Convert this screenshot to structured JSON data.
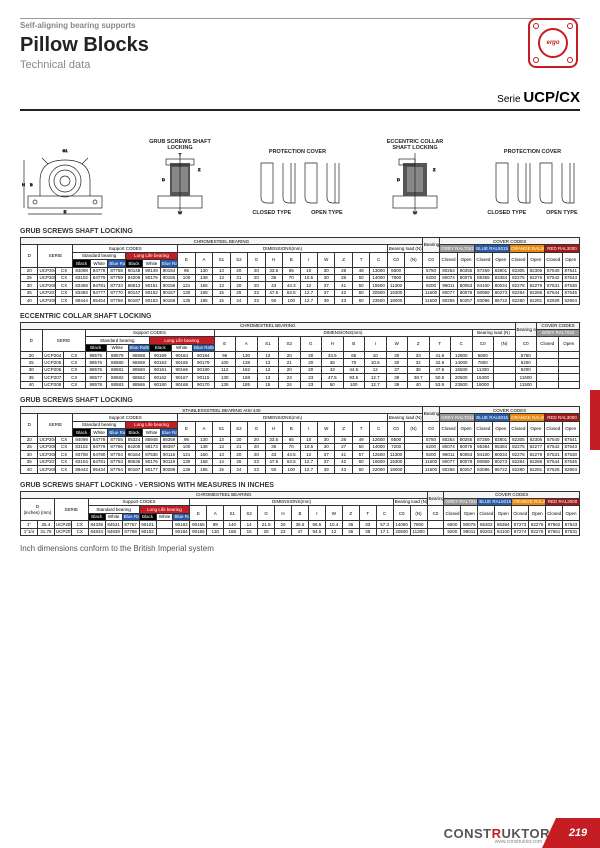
{
  "header": "Self-aligning bearing supports",
  "title": "Pillow Blocks",
  "subtitle": "Technical data",
  "serie_prefix": "Serie",
  "serie": "UCP/CX",
  "diagram_labels": {
    "grub": "GRUB SCREWS SHAFT LOCKING",
    "protection": "PROTECTION COVER",
    "eccentric": "ECCENTRIC COLLAR SHAFT LOCKING",
    "closed": "CLOSED TYPE",
    "open": "OPEN TYPE"
  },
  "sections": [
    {
      "title": "GRUB SCREWS SHAFT LOCKING",
      "super": "CHROMESTEEL BEARING",
      "covers": 4
    },
    {
      "title": "ECCENTRIC COLLAR SHAFT LOCKING",
      "super": "CHROMESTEEL BEARING",
      "covers": 1
    },
    {
      "title": "GRUB SCREWS SHAFT LOCKING",
      "super": "STAINLESSSTEEL BEARING AISI 440",
      "covers": 4
    },
    {
      "title": "GRUB SCREWS SHAFT LOCKING - VERSIONS WITH MEASURES IN INCHES",
      "super": "CHROMESTEEL BEARING",
      "covers": 4
    }
  ],
  "col_headers": {
    "d": "D",
    "serie": "SERIE",
    "support": "Support CODES",
    "std": "Standard bearing",
    "long": "Long Life bearing",
    "black": "Black",
    "white": "White",
    "blue": "Blue Ral5015",
    "dims": "DIMENSIONS(mm)",
    "load": "Bearing load (N)",
    "support_load": "Bearing support load",
    "cover": "COVER CODES",
    "grey": "GREY RAL7042",
    "blu": "BLUE RAL5015",
    "orange": "ORANGE RAL2004",
    "red": "RED RAL3000",
    "closed": "Closed",
    "open": "Open",
    "dim_cols": [
      "E",
      "A",
      "S1",
      "S2",
      "G",
      "H",
      "B",
      "I",
      "W",
      "Z",
      "T",
      "C"
    ],
    "inches": "(inches)",
    "mm": "(mm)"
  },
  "rows1": [
    [
      "20",
      "UCP204",
      "CX",
      "84098",
      "84778",
      "87758",
      "90148",
      "90149",
      "90154",
      "96",
      "130",
      "13",
      "20",
      "20",
      "33.5",
      "65",
      "10",
      "30",
      "26",
      "49",
      "13000",
      "6600",
      "",
      "5750",
      "80254",
      "80255",
      "87259",
      "83801",
      "82305",
      "82306",
      "87540",
      "87541"
    ],
    [
      "25",
      "UCP205",
      "CX",
      "83102",
      "84779",
      "87759",
      "84209",
      "90178",
      "90155",
      "100",
      "138",
      "13",
      "21",
      "20",
      "36",
      "70",
      "10.5",
      "30",
      "26",
      "50",
      "14000",
      "7800",
      "",
      "6200",
      "80074",
      "80075",
      "85355",
      "83384",
      "82275",
      "82276",
      "87542",
      "87543"
    ],
    [
      "30",
      "UCP206",
      "CX",
      "83459",
      "84781",
      "87733",
      "88613",
      "90151",
      "90156",
      "121",
      "165",
      "13",
      "20",
      "20",
      "43",
      "44.3",
      "12",
      "37",
      "41",
      "50",
      "15500",
      "11300",
      "",
      "9200",
      "99011",
      "80053",
      "84100",
      "80034",
      "82278",
      "82279",
      "87531",
      "87530"
    ],
    [
      "35",
      "UCP207",
      "CX",
      "83493",
      "84777",
      "87770",
      "90147",
      "90152",
      "90157",
      "130",
      "168",
      "15",
      "25",
      "23",
      "47.5",
      "63.5",
      "12.7",
      "37",
      "42",
      "60",
      "20500",
      "15300",
      "",
      "11600",
      "80077",
      "80078",
      "80969",
      "80273",
      "82284",
      "82285",
      "87544",
      "87545"
    ],
    [
      "40",
      "UCP208",
      "CX",
      "89444",
      "85454",
      "87768",
      "90187",
      "90153",
      "90158",
      "135",
      "185",
      "15",
      "24",
      "23",
      "50",
      "100",
      "12.7",
      "39",
      "43",
      "60",
      "23500",
      "18000",
      "",
      "11500",
      "80256",
      "80257",
      "83086",
      "86722",
      "82280",
      "82281",
      "82928",
      "82904"
    ]
  ],
  "rows2": [
    [
      "20",
      "UCP204",
      "CX",
      "88575",
      "88579",
      "88558",
      "90169",
      "90164",
      "90184",
      "96",
      "130",
      "13",
      "20",
      "20",
      "33.5",
      "65",
      "10",
      "30",
      "33",
      "41.8",
      "12800",
      "6600",
      "",
      "5750",
      "",
      "",
      "88371",
      "88372",
      "",
      "",
      "",
      ""
    ],
    [
      "25",
      "UCP205",
      "CX",
      "88576",
      "88580",
      "88559",
      "90163",
      "90165",
      "90179",
      "100",
      "138",
      "13",
      "21",
      "20",
      "36",
      "70",
      "10.5",
      "30",
      "32",
      "42.9",
      "14000",
      "7800",
      "",
      "6200",
      "",
      "",
      "88373",
      "88374",
      "",
      "",
      "",
      ""
    ],
    [
      "30",
      "UCP206",
      "CX",
      "88576",
      "88581",
      "88560",
      "90161",
      "90166",
      "90180",
      "112",
      "162",
      "13",
      "20",
      "20",
      "43",
      "44.5",
      "12",
      "37",
      "36",
      "47.6",
      "15500",
      "11300",
      "",
      "9200",
      "",
      "",
      "88375",
      "88376",
      "",
      "",
      "",
      ""
    ],
    [
      "35",
      "UCP207",
      "CX",
      "88577",
      "88582",
      "88562",
      "90162",
      "90167",
      "90115",
      "130",
      "168",
      "13",
      "23",
      "23",
      "47.5",
      "93.5",
      "12.7",
      "39",
      "38.7",
      "50.5",
      "20500",
      "15300",
      "",
      "11600",
      "",
      "",
      "88377",
      "88378",
      "",
      "",
      "",
      ""
    ],
    [
      "40",
      "UCP208",
      "CX",
      "88578",
      "88583",
      "88566",
      "90180",
      "90168",
      "90170",
      "135",
      "185",
      "15",
      "24",
      "23",
      "50",
      "100",
      "12.7",
      "39",
      "40",
      "53.9",
      "23500",
      "18000",
      "",
      "11500",
      "",
      "",
      "80256",
      "80257",
      "",
      "",
      "",
      ""
    ]
  ],
  "rows3": [
    [
      "20",
      "UCP204",
      "CX",
      "84098",
      "84778",
      "87755",
      "85324",
      "85948",
      "88359",
      "96",
      "130",
      "13",
      "20",
      "20",
      "33.5",
      "65",
      "10",
      "30",
      "26",
      "49",
      "12600",
      "6500",
      "",
      "5750",
      "80254",
      "80255",
      "87259",
      "83801",
      "82305",
      "82306",
      "87540",
      "87541"
    ],
    [
      "25",
      "UCP205",
      "CX",
      "83102",
      "84779",
      "87766",
      "84209",
      "88173",
      "88397",
      "100",
      "138",
      "13",
      "21",
      "20",
      "36",
      "70",
      "10.5",
      "30",
      "27",
      "50",
      "14000",
      "7200",
      "",
      "6200",
      "80074",
      "80075",
      "85384",
      "85384",
      "82275",
      "82277",
      "87542",
      "87543"
    ],
    [
      "30",
      "UCP206",
      "CX",
      "83708",
      "84780",
      "87764",
      "90164",
      "87536",
      "90116",
      "121",
      "160",
      "13",
      "20",
      "20",
      "43",
      "44.5",
      "12",
      "37",
      "41",
      "57",
      "12500",
      "11300",
      "",
      "9200",
      "99011",
      "80053",
      "84100",
      "80034",
      "82278",
      "82279",
      "87531",
      "87530"
    ],
    [
      "35",
      "UCP207",
      "CX",
      "83104",
      "84781",
      "87763",
      "88636",
      "90176",
      "90119",
      "130",
      "168",
      "14",
      "26",
      "23",
      "47.5",
      "63.5",
      "12.7",
      "37",
      "42",
      "60",
      "16600",
      "15300",
      "",
      "11600",
      "80077",
      "80078",
      "80969",
      "80273",
      "82284",
      "82285",
      "87544",
      "87545"
    ],
    [
      "40",
      "UCP208",
      "CX",
      "89443",
      "85434",
      "87764",
      "90187",
      "90177",
      "90286",
      "135",
      "185",
      "15",
      "24",
      "23",
      "50",
      "100",
      "12.7",
      "39",
      "43",
      "60",
      "22000",
      "18000",
      "",
      "11500",
      "80256",
      "80257",
      "83086",
      "86722",
      "82280",
      "82281",
      "87528",
      "82904"
    ]
  ],
  "rows4": [
    [
      "1\"",
      "25.4",
      "UCP205",
      "CX",
      "84335",
      "84531",
      "87767",
      "90101",
      "",
      "90183",
      "90165",
      "99",
      "140",
      "14",
      "21.5",
      "20",
      "35.5",
      "66.5",
      "10.4",
      "36",
      "33",
      "57.3",
      "14060",
      "7800",
      "",
      "6500",
      "80075",
      "85302",
      "85384",
      "87273",
      "82276",
      "87662",
      "87543",
      "87663"
    ],
    [
      "1\"1/4",
      "31.75",
      "UCP207",
      "CX",
      "84834",
      "84839",
      "87769",
      "90102",
      "",
      "90184",
      "90166",
      "130",
      "168",
      "15",
      "25",
      "23",
      "47",
      "94.5",
      "12",
      "36",
      "38",
      "17.1",
      "20500",
      "11300",
      "",
      "9200",
      "99011",
      "80203",
      "84100",
      "87274",
      "82276",
      "87651",
      "87531",
      "87664"
    ]
  ],
  "note": "Inch dimensions conform to the British Imperial system",
  "footer": {
    "brand_pre": "CONST",
    "brand_r": "R",
    "brand_post": "UKTOR",
    "sub": "www.construktor.com",
    "page": "219"
  },
  "colors": {
    "red": "#c41e24",
    "blue": "#2a5caa",
    "grey": "#999999",
    "orange": "#e8880d",
    "darkred": "#a01818",
    "black": "#000000"
  }
}
